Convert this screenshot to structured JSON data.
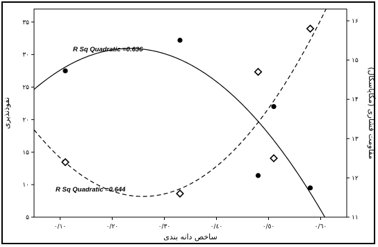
{
  "chart_data": {
    "type": "scatter",
    "x_axis": {
      "label": "ساخص دانه بندی",
      "range": [
        0.05,
        0.65
      ],
      "ticks": [
        0.1,
        0.2,
        0.3,
        0.4,
        0.5,
        0.6
      ],
      "tick_labels": [
        "٠/١٠",
        "٠/٢٠",
        "٠/٣٠",
        "٠/٤٠",
        "٠/٥٠",
        "٠/٦٠"
      ]
    },
    "y_axis_left": {
      "label": "نفوذنذیری",
      "range": [
        5,
        37
      ],
      "ticks": [
        5,
        10,
        15,
        20,
        25,
        30,
        35
      ],
      "tick_labels": [
        "۵",
        "١٠",
        "١۵",
        "٢٠",
        "٢۵",
        "٣٠",
        "٣۵"
      ]
    },
    "y_axis_right": {
      "label": "مقاومت فشاری (مگاپاسکال)",
      "range": [
        11,
        16.3
      ],
      "ticks": [
        11,
        12,
        13,
        14,
        15,
        16
      ],
      "tick_labels": [
        "١١",
        "١٢",
        "١٣",
        "١۴",
        "١۵",
        "١۶"
      ]
    },
    "series": [
      {
        "marker": "filled-circle",
        "axis": "left",
        "points": [
          {
            "x": 0.11,
            "y": 27.5
          },
          {
            "x": 0.33,
            "y": 32.2
          },
          {
            "x": 0.48,
            "y": 11.4
          },
          {
            "x": 0.51,
            "y": 22.0
          },
          {
            "x": 0.58,
            "y": 9.5
          }
        ],
        "fit": {
          "type": "quadratic",
          "label": "R Sq Quadratic =0.636",
          "line": "solid"
        }
      },
      {
        "marker": "open-diamond",
        "axis": "right",
        "points": [
          {
            "x": 0.11,
            "y": 12.4
          },
          {
            "x": 0.33,
            "y": 11.6
          },
          {
            "x": 0.48,
            "y": 14.7
          },
          {
            "x": 0.51,
            "y": 12.5
          },
          {
            "x": 0.58,
            "y": 15.8
          }
        ],
        "fit": {
          "type": "quadratic",
          "label": "R Sq Quadratic =0.644",
          "line": "dashed"
        }
      }
    ],
    "grid": false,
    "colors": {
      "marks": "#000000",
      "background": "#ffffff"
    }
  }
}
